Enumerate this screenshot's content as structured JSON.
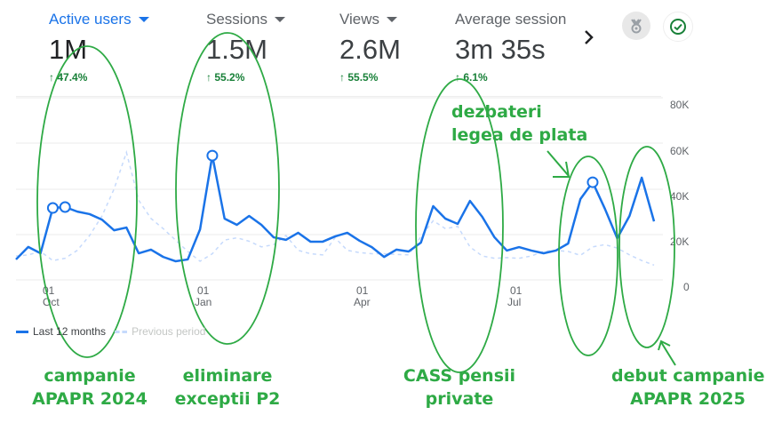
{
  "metrics": [
    {
      "label": "Active users",
      "value": "1M",
      "delta": "47.4%",
      "active": true
    },
    {
      "label": "Sessions",
      "value": "1.5M",
      "delta": "55.2%",
      "active": false
    },
    {
      "label": "Views",
      "value": "2.6M",
      "delta": "55.5%",
      "active": false
    },
    {
      "label": "Average session (",
      "value": "3m 35s",
      "delta": "6.1%",
      "active": false
    }
  ],
  "icons": {
    "delta_arrow": "↑",
    "next": "chevron-right-icon",
    "badge": "medal-icon",
    "status": "check-circle-icon"
  },
  "colors": {
    "accent": "#1a73e8",
    "positive": "#188038",
    "previous_period": "#c6dafc",
    "annotation": "#2eaa45"
  },
  "legend": {
    "current": "Last 12 months",
    "previous": "Previous period"
  },
  "annotations": {
    "a1": {
      "line1": "campanie",
      "line2": "APAPR 2024"
    },
    "a2": {
      "line1": "eliminare",
      "line2": "exceptii P2"
    },
    "a3": {
      "line1": "CASS pensii",
      "line2": "private"
    },
    "a4": {
      "line1": "dezbateri",
      "line2": "legea de plata"
    },
    "a5": {
      "line1": "debut campanie",
      "line2": "APAPR 2025"
    }
  },
  "chart_data": {
    "type": "line",
    "title": "Active users",
    "xlabel": "",
    "ylabel": "",
    "ylim": [
      0,
      80000
    ],
    "y_ticks": [
      "0",
      "20K",
      "40K",
      "60K",
      "80K"
    ],
    "x_ticks": [
      {
        "day": "01",
        "month": "Oct"
      },
      {
        "day": "01",
        "month": "Jan"
      },
      {
        "day": "01",
        "month": "Apr"
      },
      {
        "day": "01",
        "month": "Jul"
      }
    ],
    "grid": true,
    "legend_position": "bottom-left",
    "granularity": "weekly",
    "series": [
      {
        "name": "Last 12 months",
        "style": "solid",
        "values": [
          9000,
          14500,
          11700,
          31600,
          32000,
          30000,
          28900,
          26500,
          21800,
          23000,
          11700,
          13300,
          10100,
          8200,
          9000,
          22200,
          54600,
          26900,
          24200,
          28100,
          24200,
          18700,
          17600,
          20700,
          16800,
          16800,
          19100,
          20700,
          17200,
          14400,
          10100,
          13300,
          12500,
          16400,
          32400,
          26900,
          24600,
          34700,
          27700,
          18700,
          12900,
          14400,
          12900,
          11700,
          12900,
          16000,
          35500,
          42900,
          31200,
          18300,
          28100,
          44900,
          25700
        ]
      },
      {
        "name": "Previous period",
        "style": "dashed",
        "values": [
          10500,
          11000,
          12500,
          8500,
          9500,
          13000,
          19500,
          28000,
          40000,
          56000,
          35000,
          27000,
          22500,
          17500,
          12500,
          8200,
          11500,
          17500,
          18500,
          17000,
          14500,
          15500,
          19500,
          13000,
          11500,
          11000,
          18500,
          13000,
          12000,
          11500,
          11500,
          11200,
          11000,
          19000,
          26000,
          22500,
          23500,
          14500,
          10500,
          9500,
          9800,
          9500,
          10500,
          12500,
          13000,
          12500,
          10800,
          14500,
          15500,
          14000,
          11000,
          8500,
          6500
        ]
      }
    ],
    "highlighted_points": [
      {
        "series": "Last 12 months",
        "index": 3
      },
      {
        "series": "Last 12 months",
        "index": 4
      },
      {
        "series": "Last 12 months",
        "index": 16
      },
      {
        "series": "Last 12 months",
        "index": 47
      }
    ],
    "annotations": [
      "campanie APAPR 2024",
      "eliminare exceptii P2",
      "CASS pensii private",
      "dezbateri legea de plata",
      "debut campanie APAPR 2025"
    ]
  }
}
